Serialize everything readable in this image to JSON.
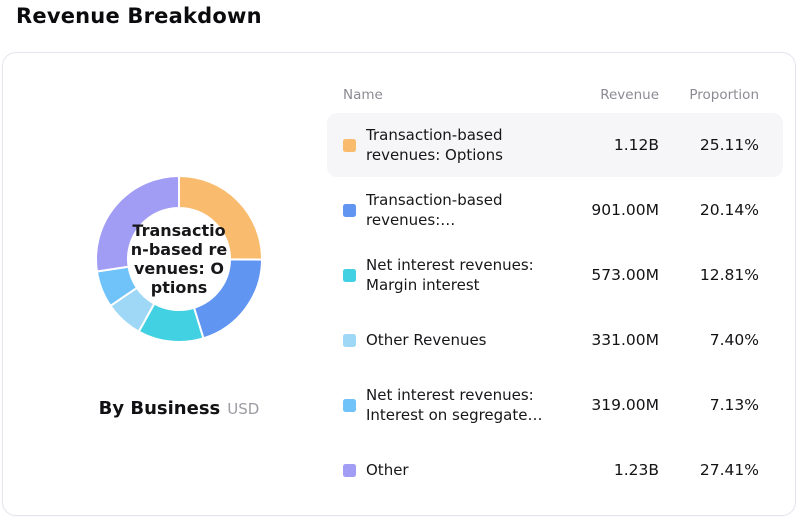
{
  "page_title": "Revenue Breakdown",
  "chart_data": {
    "type": "pie",
    "subtype": "donut",
    "title": "By Business",
    "currency": "USD",
    "start_angle_deg": 0,
    "direction": "clockwise",
    "inner_radius_ratio": 0.61,
    "center_label": "Transaction-based revenues: Options",
    "center_label_lines": [
      "Transactio",
      "n-based re",
      "venues: O",
      "ptions"
    ],
    "segments": [
      {
        "name": "Transaction-based revenues: Options",
        "value_label": "1.12B",
        "proportion": 25.11,
        "proportion_label": "25.11%",
        "color": "#F9BC6E"
      },
      {
        "name": "Transaction-based revenues:…",
        "value_label": "901.00M",
        "proportion": 20.14,
        "proportion_label": "20.14%",
        "color": "#6195F2"
      },
      {
        "name": "Net interest revenues: Margin interest",
        "value_label": "573.00M",
        "proportion": 12.81,
        "proportion_label": "12.81%",
        "color": "#41D1E3"
      },
      {
        "name": "Other Revenues",
        "value_label": "331.00M",
        "proportion": 7.4,
        "proportion_label": "7.40%",
        "color": "#9FD8F6"
      },
      {
        "name": "Net interest revenues: Interest on segregate…",
        "value_label": "319.00M",
        "proportion": 7.13,
        "proportion_label": "7.13%",
        "color": "#6FC3F8"
      },
      {
        "name": "Other",
        "value_label": "1.23B",
        "proportion": 27.41,
        "proportion_label": "27.41%",
        "color": "#A29DF4"
      }
    ],
    "gap_color": "#ffffff"
  },
  "table": {
    "headers": {
      "name": "Name",
      "revenue": "Revenue",
      "proportion": "Proportion"
    },
    "highlighted_row_index": 0
  }
}
